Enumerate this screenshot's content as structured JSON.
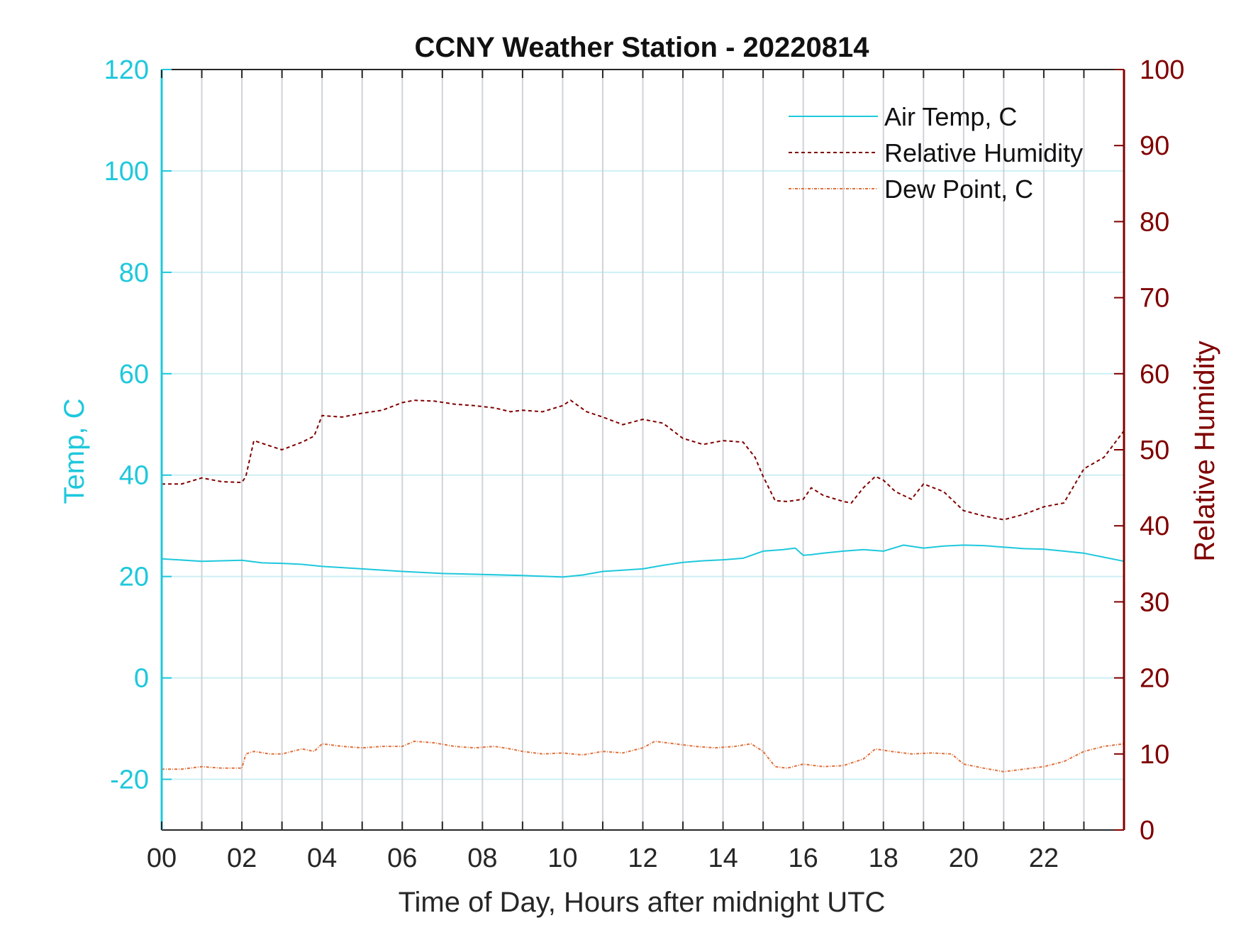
{
  "chart_data": {
    "type": "line",
    "title": "CCNY Weather Station - 20220814",
    "xlabel": "Time of Day, Hours after midnight UTC",
    "ylabel_left": "Temp, C",
    "ylabel_right": "Relative Humidity",
    "xlim": [
      0,
      24
    ],
    "ylim_left": [
      -30,
      120
    ],
    "ylim_right": [
      0,
      100
    ],
    "x_ticks": [
      0,
      2,
      4,
      6,
      8,
      10,
      12,
      14,
      16,
      18,
      20,
      22
    ],
    "x_tick_labels": [
      "00",
      "02",
      "04",
      "06",
      "08",
      "10",
      "12",
      "14",
      "16",
      "18",
      "20",
      "22"
    ],
    "x_minor_gridlines": [
      1,
      3,
      5,
      7,
      9,
      11,
      13,
      15,
      17,
      19,
      21,
      23
    ],
    "y_left_ticks": [
      -20,
      0,
      20,
      40,
      60,
      80,
      100,
      120
    ],
    "y_left_tick_labels": [
      "-20",
      "0",
      "20",
      "40",
      "60",
      "80",
      "100",
      "120"
    ],
    "y_right_ticks": [
      0,
      10,
      20,
      30,
      40,
      50,
      60,
      70,
      80,
      90,
      100
    ],
    "y_right_tick_labels": [
      "0",
      "10",
      "20",
      "30",
      "40",
      "50",
      "60",
      "70",
      "80",
      "90",
      "100"
    ],
    "grid": true,
    "legend_position": "top-right",
    "colors": {
      "left_axis": "#1ec8dc",
      "right_axis": "#800000",
      "air_temp": "#1ec8dc",
      "humidity": "#800000",
      "dew_point": "#e0703a",
      "grid_vertical": "#cfd3d8",
      "grid_horizontal": "#cdeff4"
    },
    "series": [
      {
        "name": "Air Temp, C",
        "axis": "left",
        "style": "solid",
        "x": [
          0,
          1,
          2,
          2.5,
          3,
          3.5,
          4,
          5,
          6,
          7,
          8,
          9,
          10,
          10.5,
          11,
          12,
          12.5,
          13,
          13.5,
          14,
          14.5,
          15,
          15.5,
          15.8,
          16,
          16.2,
          16.5,
          17,
          17.5,
          18,
          18.5,
          19,
          19.5,
          20,
          20.5,
          21,
          21.5,
          22,
          22.5,
          23,
          23.5,
          24
        ],
        "values": [
          23.5,
          23.0,
          23.2,
          22.7,
          22.6,
          22.4,
          22.0,
          21.5,
          21.0,
          20.6,
          20.4,
          20.2,
          19.9,
          20.3,
          21.0,
          21.5,
          22.2,
          22.8,
          23.1,
          23.3,
          23.6,
          25.0,
          25.3,
          25.6,
          24.2,
          24.3,
          24.6,
          25.0,
          25.3,
          25.0,
          26.2,
          25.6,
          26.0,
          26.2,
          26.1,
          25.8,
          25.5,
          25.4,
          25.0,
          24.6,
          23.8,
          23.0
        ]
      },
      {
        "name": "Relative Humidity",
        "axis": "right",
        "style": "dashed",
        "x": [
          0,
          0.5,
          1,
          1.5,
          2,
          2.1,
          2.3,
          2.7,
          3,
          3.5,
          3.8,
          4,
          4.5,
          5,
          5.5,
          6,
          6.3,
          6.8,
          7.3,
          7.8,
          8.3,
          8.7,
          9,
          9.5,
          10,
          10.2,
          10.6,
          11,
          11.5,
          12,
          12.5,
          13,
          13.5,
          14,
          14.5,
          14.8,
          15,
          15.3,
          15.6,
          16,
          16.2,
          16.5,
          17,
          17.2,
          17.5,
          17.8,
          18,
          18.3,
          18.7,
          19,
          19.5,
          20,
          20.5,
          21,
          21.5,
          22,
          22.5,
          23,
          23.5,
          24
        ],
        "values": [
          45.5,
          45.5,
          46.3,
          45.8,
          45.7,
          46.5,
          51.2,
          50.5,
          50.0,
          51.0,
          51.8,
          54.5,
          54.3,
          54.8,
          55.2,
          56.2,
          56.5,
          56.4,
          56.0,
          55.8,
          55.5,
          55.0,
          55.2,
          55.0,
          55.8,
          56.5,
          55.0,
          54.3,
          53.3,
          54.0,
          53.5,
          51.5,
          50.7,
          51.2,
          51.0,
          49.0,
          46.5,
          43.3,
          43.2,
          43.5,
          45.0,
          44.0,
          43.2,
          43.0,
          45.0,
          46.5,
          46.0,
          44.5,
          43.5,
          45.5,
          44.5,
          42.0,
          41.3,
          40.8,
          41.5,
          42.5,
          43.0,
          47.5,
          49.0,
          52.5
        ]
      },
      {
        "name": "Dew Point, C",
        "axis": "left",
        "style": "dashdot",
        "x": [
          0,
          0.5,
          1,
          1.5,
          2,
          2.1,
          2.3,
          2.7,
          3,
          3.5,
          3.8,
          4,
          4.5,
          5,
          5.5,
          6,
          6.3,
          6.8,
          7.3,
          7.8,
          8.3,
          8.7,
          9,
          9.5,
          10,
          10.5,
          11,
          11.5,
          12,
          12.3,
          12.8,
          13.3,
          13.8,
          14.3,
          14.7,
          15,
          15.3,
          15.6,
          16,
          16.5,
          17,
          17.5,
          17.8,
          18.2,
          18.7,
          19.2,
          19.7,
          20,
          20.5,
          21,
          21.5,
          22,
          22.5,
          23,
          23.5,
          24
        ],
        "values": [
          -18.0,
          -18.0,
          -17.5,
          -17.8,
          -17.8,
          -15.0,
          -14.5,
          -15.0,
          -15.0,
          -14.0,
          -14.5,
          -13.0,
          -13.5,
          -13.8,
          -13.5,
          -13.5,
          -12.5,
          -12.8,
          -13.5,
          -13.8,
          -13.5,
          -14.0,
          -14.5,
          -15.0,
          -14.8,
          -15.2,
          -14.5,
          -14.8,
          -13.8,
          -12.5,
          -13.0,
          -13.5,
          -13.8,
          -13.5,
          -13.0,
          -14.5,
          -17.5,
          -17.8,
          -17.0,
          -17.5,
          -17.3,
          -16.0,
          -14.0,
          -14.5,
          -15.0,
          -14.8,
          -15.0,
          -17.0,
          -17.8,
          -18.5,
          -18.0,
          -17.5,
          -16.5,
          -14.5,
          -13.5,
          -13.0
        ]
      }
    ]
  }
}
